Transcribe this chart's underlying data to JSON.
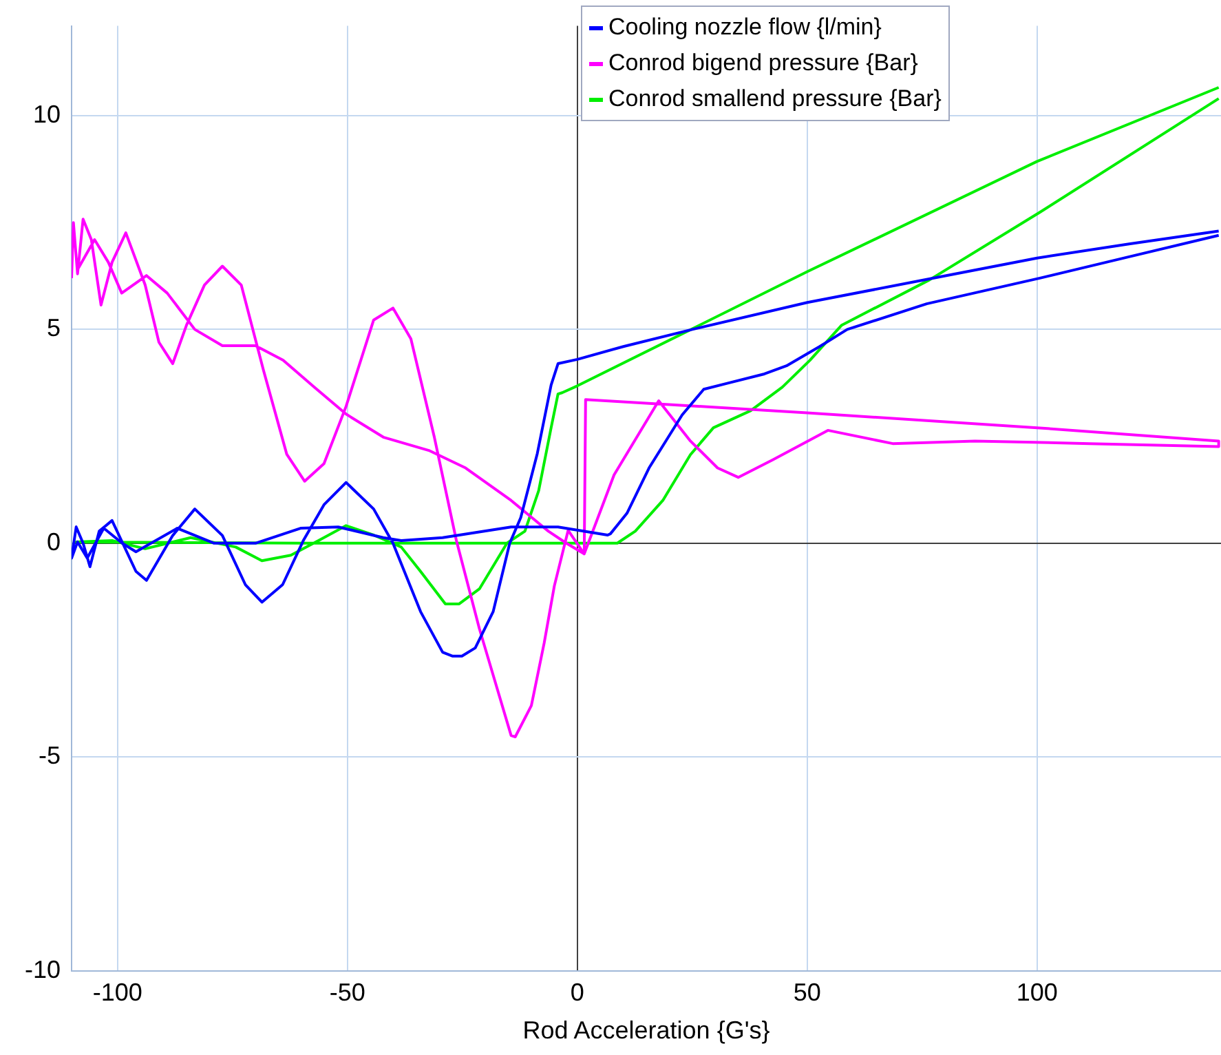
{
  "chart_data": {
    "type": "line",
    "xlabel": "Rod Acceleration {G's}",
    "xlim": [
      -110,
      140
    ],
    "xticks": [
      -100,
      -50,
      0,
      50,
      100
    ],
    "ylim": [
      -10,
      12.1
    ],
    "yticks": [
      -10,
      -5,
      0,
      5,
      10
    ],
    "grid": true,
    "legend": "top right",
    "marker": "none",
    "line_style": "solid",
    "series": [
      {
        "name": "Cooling nozzle flow {l/min}",
        "color": "#0000ff",
        "x": [
          139.5,
          120,
          100,
          75,
          50,
          25,
          10,
          0,
          -4.2,
          -5.7,
          -8.7,
          -12.3,
          -14.7,
          -18.3,
          -22.2,
          -25.1,
          -27.2,
          -29.3,
          -34.1,
          -40.1,
          -44.3,
          -50.3,
          -55.1,
          -59.6,
          -64.1,
          -68.6,
          -72.2,
          -77.2,
          -83.2,
          -88,
          -93.7,
          -96,
          -101.2,
          -104,
          -106,
          -107.5,
          -109,
          -110,
          -108.7,
          -106.6,
          -103,
          -99,
          -96,
          -87,
          -79,
          -70,
          -60.2,
          -52,
          -42.2,
          -38.3,
          -29.3,
          -14.4,
          -4.2,
          6.6,
          7.2,
          10.8,
          15.6,
          22.8,
          27.5,
          32.6,
          40.7,
          45.5,
          52.7,
          58.7,
          76,
          100.6,
          120,
          139.5
        ],
        "values": [
          7.3,
          7.0,
          6.67,
          6.15,
          5.63,
          5.0,
          4.6,
          4.3,
          4.2,
          3.7,
          2.1,
          0.6,
          0,
          -1.6,
          -2.45,
          -2.64,
          -2.64,
          -2.55,
          -1.6,
          0,
          0.8,
          1.42,
          0.9,
          0.06,
          -0.97,
          -1.38,
          -0.97,
          0.18,
          0.8,
          0.18,
          -0.87,
          -0.66,
          0.53,
          0.28,
          -0.55,
          0,
          0.38,
          -0.35,
          0.03,
          -0.35,
          0.35,
          0,
          -0.2,
          0.35,
          0,
          0,
          0.35,
          0.38,
          0.13,
          0.06,
          0.13,
          0.38,
          0.38,
          0.19,
          0.22,
          0.7,
          1.76,
          3.0,
          3.6,
          3.74,
          3.96,
          4.15,
          4.6,
          5.0,
          5.6,
          6.2,
          6.7,
          7.2
        ]
      },
      {
        "name": "Conrod bigend pressure {Bar}",
        "color": "#ff00ff",
        "x": [
          -110,
          -109.6,
          -108.7,
          -107.5,
          -105.7,
          -103.6,
          -101.2,
          -98.2,
          -94,
          -91,
          -88,
          -85,
          -81.1,
          -77.2,
          -73.1,
          -68.3,
          -63.2,
          -59.3,
          -55.1,
          -50.3,
          -44.3,
          -40.1,
          -36.2,
          -31.1,
          -26.3,
          -21.3,
          -14.4,
          -13.5,
          -10,
          -7.2,
          -5,
          -2,
          1.5,
          8,
          17.7,
          24.6,
          30.5,
          35,
          42.5,
          54.5,
          68.6,
          86.5,
          111.4,
          139.5,
          139.5,
          100,
          50,
          1.8,
          1.5,
          -2.4,
          -6.3,
          -14.4,
          -24.3,
          -32.3,
          -42.2,
          -50.3,
          -57.2,
          -64,
          -70,
          -77.2,
          -83.2,
          -89.2,
          -93.7,
          -99.1,
          -102,
          -105,
          -108.7
        ],
        "values": [
          6.2,
          7.5,
          6.3,
          7.58,
          7.1,
          5.57,
          6.57,
          7.26,
          6.04,
          4.7,
          4.2,
          5.1,
          6.04,
          6.48,
          6.04,
          4.06,
          2.08,
          1.45,
          1.86,
          3.2,
          5.22,
          5.5,
          4.78,
          2.48,
          0.06,
          -2.0,
          -4.5,
          -4.53,
          -3.8,
          -2.33,
          -1.0,
          0.3,
          -0.25,
          1.6,
          3.33,
          2.39,
          1.76,
          1.54,
          1.95,
          2.64,
          2.33,
          2.39,
          2.33,
          2.26,
          2.39,
          2.7,
          3.05,
          3.36,
          -0.25,
          0,
          0.28,
          1.0,
          1.76,
          2.17,
          2.48,
          3.02,
          3.65,
          4.28,
          4.62,
          4.62,
          5.0,
          5.85,
          6.26,
          5.85,
          6.57,
          7.1,
          6.4
        ]
      },
      {
        "name": "Conrod smallend pressure {Bar}",
        "color": "#00ee00",
        "x": [
          139.5,
          100,
          50,
          0,
          -3.3,
          -4.2,
          -5.7,
          -8.4,
          -11.4,
          -15.3,
          -21.3,
          -25.7,
          -28.7,
          -34.1,
          -38.3,
          -44.3,
          -50.3,
          -56.3,
          -62.3,
          -68.6,
          -74.3,
          -84.1,
          -94,
          -101.2,
          -109,
          -60,
          0,
          8.7,
          12.6,
          18.6,
          24.6,
          29.6,
          37.7,
          44.6,
          50.6,
          57.5,
          76.6,
          100.6,
          139.5
        ],
        "values": [
          10.66,
          8.93,
          6.35,
          3.68,
          3.52,
          3.49,
          2.7,
          1.23,
          0.28,
          0,
          -1.07,
          -1.42,
          -1.42,
          -0.66,
          -0.09,
          0.19,
          0.41,
          0.06,
          -0.28,
          -0.41,
          -0.09,
          0.13,
          -0.13,
          0.06,
          0.03,
          0,
          0,
          0,
          0.28,
          1.0,
          2.07,
          2.7,
          3.1,
          3.65,
          4.28,
          5.1,
          6.16,
          7.74,
          10.4
        ]
      }
    ]
  }
}
